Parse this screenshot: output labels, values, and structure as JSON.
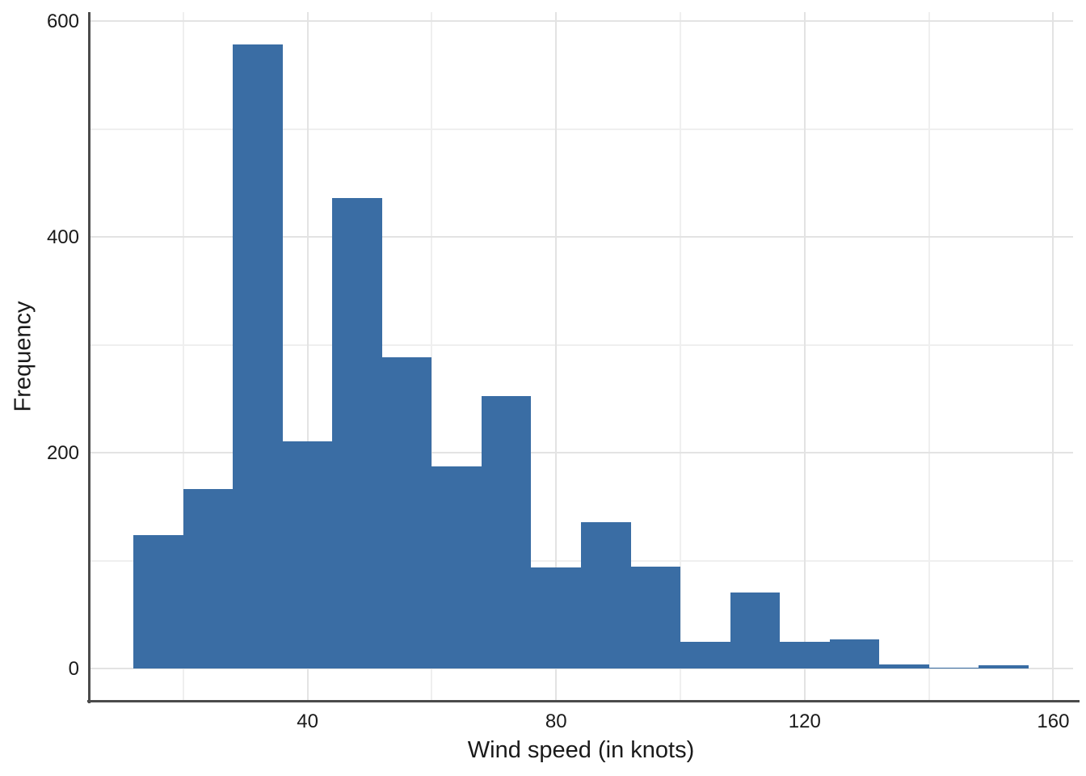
{
  "figure": {
    "background_color": "#ffffff",
    "text_color": "#1a1a1a"
  },
  "chart_data": {
    "type": "bar",
    "subtype": "histogram",
    "title": "",
    "xlabel": "Wind speed (in knots)",
    "ylabel": "Frequency",
    "bin_width": 8,
    "bin_edges": [
      12,
      20,
      28,
      36,
      44,
      52,
      60,
      68,
      76,
      84,
      92,
      100,
      108,
      116,
      124,
      132,
      140,
      148,
      156
    ],
    "counts": [
      124,
      167,
      579,
      211,
      436,
      289,
      188,
      253,
      94,
      136,
      95,
      25,
      71,
      25,
      27,
      4,
      1,
      3
    ],
    "x_ticks": [
      40,
      80,
      120,
      160
    ],
    "x_minor_ticks": [
      20,
      60,
      100,
      140
    ],
    "y_ticks": [
      0,
      200,
      400,
      600
    ],
    "y_minor_ticks": [
      100,
      300,
      500
    ],
    "xlim": [
      4.8,
      163.2
    ],
    "ylim": [
      -29.6,
      608.6
    ],
    "grid": "on",
    "legend": "none",
    "colors": {
      "bar_fill": "#3a6da4",
      "grid_major": "#e3e3e3",
      "grid_minor": "#efefef",
      "axis_spine": "#4b4b4b"
    }
  }
}
